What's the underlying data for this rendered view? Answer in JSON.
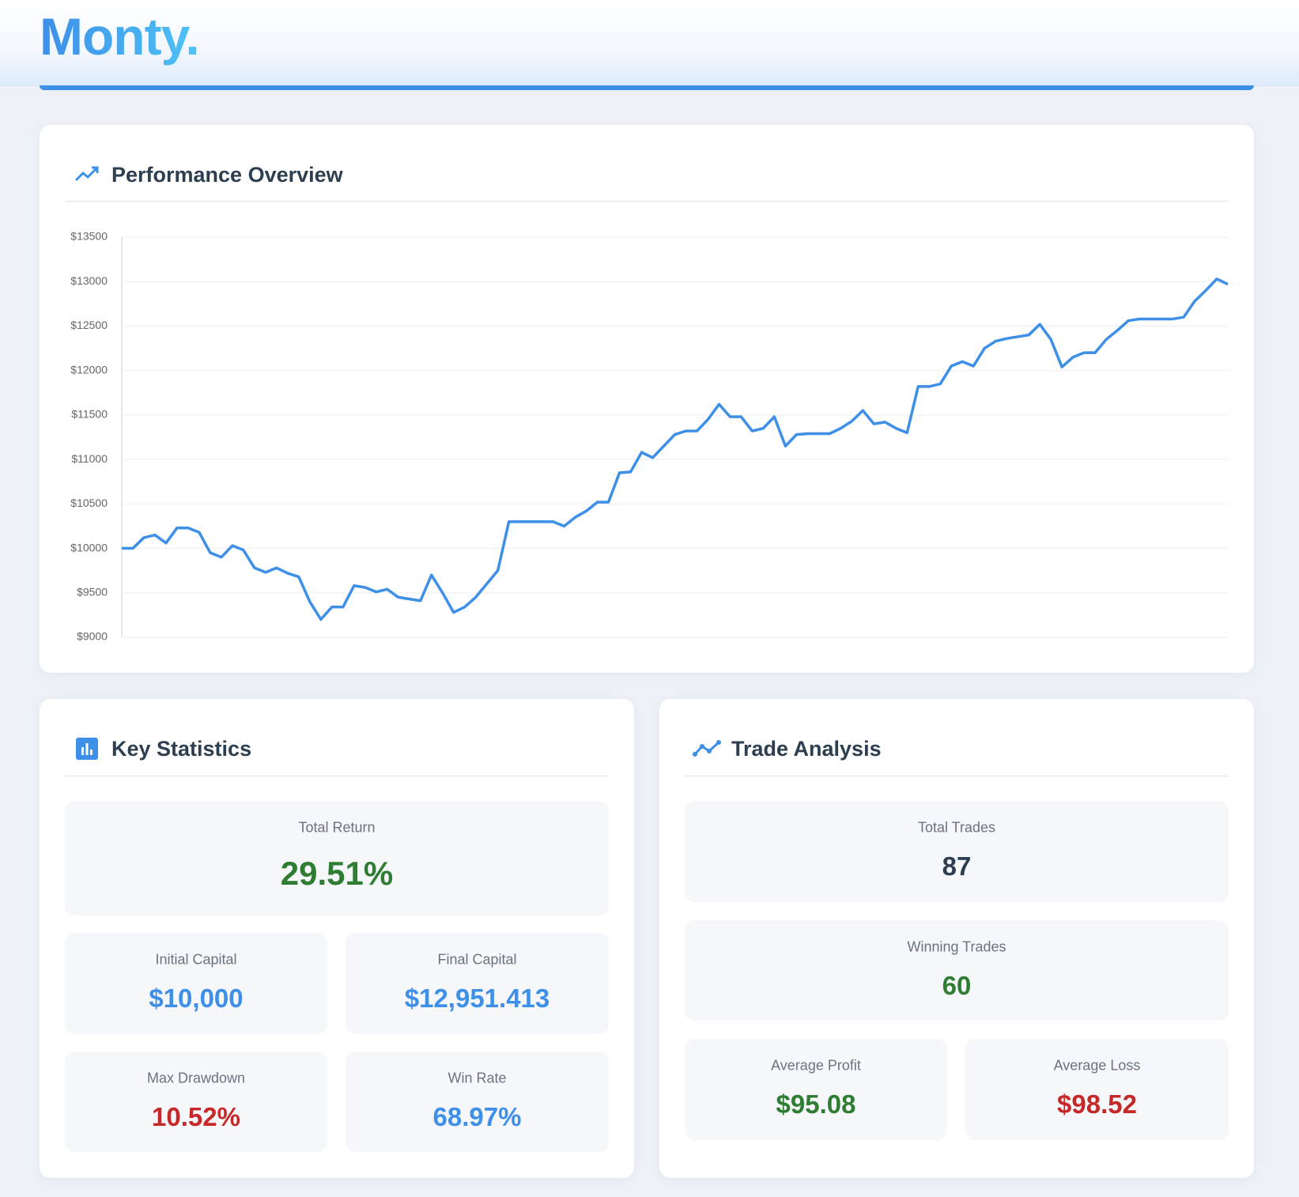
{
  "header": {
    "logo": "Monty."
  },
  "chart_data": {
    "type": "line",
    "title": "Performance Overview",
    "color": "#3d8fe8",
    "grid": true,
    "ylim": [
      9000,
      13500
    ],
    "yticks": [
      {
        "value": 9000,
        "label": "$9000"
      },
      {
        "value": 9500,
        "label": "$9500"
      },
      {
        "value": 10000,
        "label": "$10000"
      },
      {
        "value": 10500,
        "label": "$10500"
      },
      {
        "value": 11000,
        "label": "$11000"
      },
      {
        "value": 11500,
        "label": "$11500"
      },
      {
        "value": 12000,
        "label": "$12000"
      },
      {
        "value": 12500,
        "label": "$12500"
      },
      {
        "value": 13000,
        "label": "$13000"
      },
      {
        "value": 13500,
        "label": "$13500"
      }
    ],
    "values": [
      10000,
      10000,
      10120,
      10150,
      10060,
      10230,
      10230,
      10180,
      9950,
      9900,
      10030,
      9980,
      9780,
      9730,
      9780,
      9720,
      9680,
      9400,
      9200,
      9340,
      9340,
      9580,
      9560,
      9510,
      9540,
      9450,
      9430,
      9410,
      9700,
      9500,
      9280,
      9340,
      9450,
      9600,
      9750,
      10300,
      10300,
      10300,
      10300,
      10300,
      10250,
      10350,
      10420,
      10520,
      10520,
      10850,
      10860,
      11080,
      11020,
      11150,
      11280,
      11320,
      11320,
      11450,
      11620,
      11480,
      11480,
      11320,
      11350,
      11480,
      11150,
      11280,
      11290,
      11290,
      11290,
      11350,
      11430,
      11550,
      11400,
      11420,
      11350,
      11300,
      11820,
      11820,
      11850,
      12050,
      12100,
      12050,
      12250,
      12330,
      12360,
      12380,
      12400,
      12520,
      12350,
      12040,
      12150,
      12200,
      12200,
      12350,
      12450,
      12560,
      12580,
      12580,
      12580,
      12580,
      12600,
      12780,
      12900,
      13030,
      12970
    ]
  },
  "key_statistics": {
    "title": "Key Statistics",
    "items": [
      {
        "label": "Total Return",
        "value": "29.51%"
      },
      {
        "label": "Initial Capital",
        "value": "$10,000"
      },
      {
        "label": "Final Capital",
        "value": "$12,951.413"
      },
      {
        "label": "Max Drawdown",
        "value": "10.52%"
      },
      {
        "label": "Win Rate",
        "value": "68.97%"
      }
    ]
  },
  "trade_analysis": {
    "title": "Trade Analysis",
    "items": [
      {
        "label": "Total Trades",
        "value": "87"
      },
      {
        "label": "Winning Trades",
        "value": "60"
      },
      {
        "label": "Average Profit",
        "value": "$95.08"
      },
      {
        "label": "Average Loss",
        "value": "$98.52"
      }
    ]
  }
}
